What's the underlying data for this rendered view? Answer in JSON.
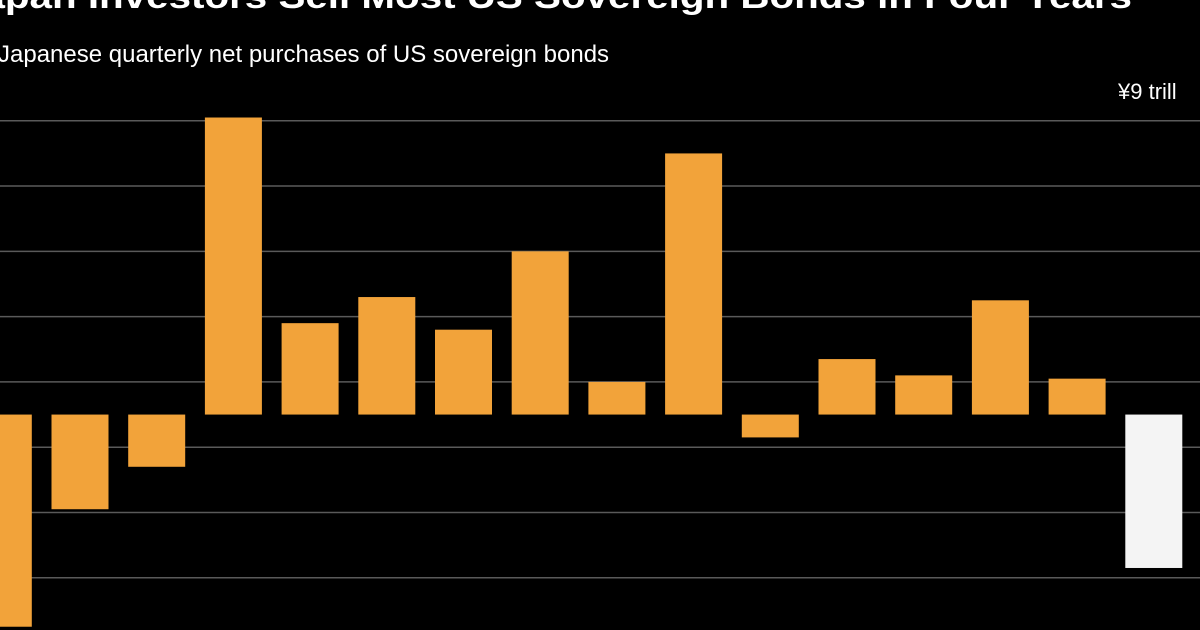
{
  "chart_data": {
    "type": "bar",
    "title": "Japan Investors Sell Most US Sovereign Bonds in Four Years",
    "subtitle": "Japanese quarterly net purchases of US sovereign bonds",
    "categories": [
      null,
      null,
      null,
      null,
      null,
      null,
      null,
      null,
      null,
      null,
      null,
      null,
      null,
      null,
      null,
      null
    ],
    "values": [
      -6.5,
      -2.9,
      -1.6,
      9.1,
      2.8,
      3.6,
      2.6,
      5.0,
      1.0,
      8.0,
      -0.7,
      1.7,
      1.2,
      3.5,
      1.1,
      -4.7
    ],
    "colors": [
      "#f2a33a",
      "#f2a33a",
      "#f2a33a",
      "#f2a33a",
      "#f2a33a",
      "#f2a33a",
      "#f2a33a",
      "#f2a33a",
      "#f2a33a",
      "#f2a33a",
      "#f2a33a",
      "#f2a33a",
      "#f2a33a",
      "#f2a33a",
      "#f2a33a",
      "#f4f4f4"
    ],
    "ylim": [
      -6.6,
      12.7
    ],
    "yticks": [
      {
        "value": 9,
        "label": "¥9 trill"
      }
    ],
    "gridlines": [
      9,
      7,
      5,
      3,
      1,
      -1,
      -3,
      -5
    ],
    "grid": true
  }
}
